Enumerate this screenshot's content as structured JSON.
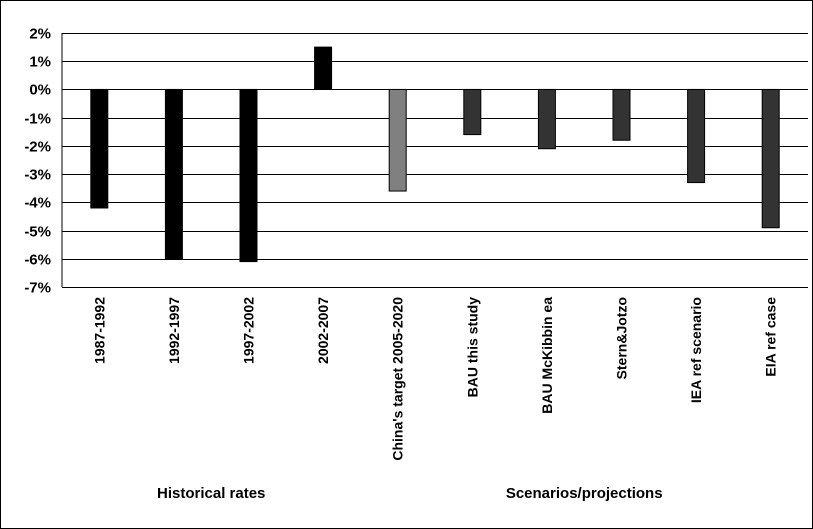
{
  "chart_data": {
    "type": "bar",
    "categories": [
      "1987-1992",
      "1992-1997",
      "1997-2002",
      "2002-2007",
      "China's target 2005-2020",
      "BAU this study",
      "BAU McKibbin ea",
      "Stern&Jotzo",
      "IEA ref scenario",
      "EIA ref case"
    ],
    "values": [
      -4.2,
      -6.0,
      -6.1,
      1.5,
      -3.6,
      -1.6,
      -2.1,
      -1.8,
      -3.3,
      -4.9
    ],
    "unit": "%",
    "ylim": [
      -7,
      2
    ],
    "yticks": [
      2,
      1,
      0,
      -1,
      -2,
      -3,
      -4,
      -5,
      -6,
      -7
    ],
    "ytick_labels": [
      "2%",
      "1%",
      "0%",
      "-1%",
      "-2%",
      "-3%",
      "-4%",
      "-5%",
      "-6%",
      "-7%"
    ],
    "groups": [
      {
        "label": "Historical rates",
        "categories": [
          "1987-1992",
          "1992-1997",
          "1997-2002",
          "2002-2007"
        ]
      },
      {
        "label": "Scenarios/projections",
        "categories": [
          "China's target 2005-2020",
          "BAU this study",
          "BAU McKibbin ea",
          "Stern&Jotzo",
          "IEA ref scenario",
          "EIA ref case"
        ]
      }
    ],
    "bar_colors": [
      "#000000",
      "#000000",
      "#000000",
      "#000000",
      "#808080",
      "#333333",
      "#333333",
      "#333333",
      "#333333",
      "#333333"
    ],
    "grid": true,
    "legend": "none"
  }
}
